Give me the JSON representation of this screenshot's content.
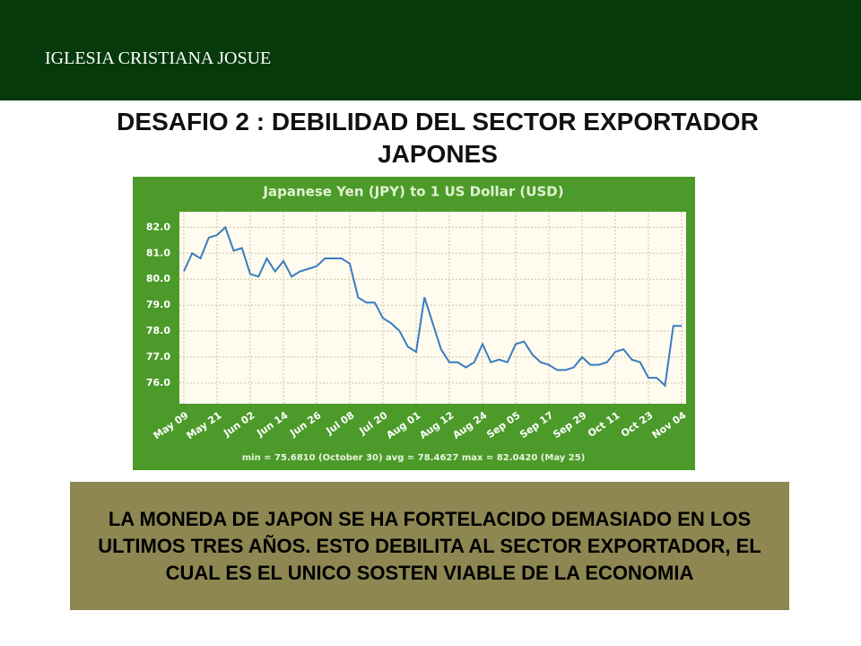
{
  "header": {
    "title": "IGLESIA CRISTIANA JOSUE"
  },
  "title": "DESAFIO 2 : DEBILIDAD DEL SECTOR EXPORTADOR JAPONES",
  "caption": "LA MONEDA DE JAPON SE HA FORTELACIDO DEMASIADO EN LOS ULTIMOS TRES AÑOS. ESTO DEBILITA AL SECTOR EXPORTADOR, EL CUAL ES EL UNICO SOSTEN VIABLE DE LA ECONOMIA",
  "chart_data": {
    "type": "line",
    "title": "Japanese Yen (JPY) to 1 US Dollar (USD)",
    "stats": "min = 75.6810 (October 30)   avg = 78.4627   max = 82.0420 (May 25)",
    "x": [
      "May 09",
      "May 12",
      "May 15",
      "May 18",
      "May 21",
      "May 24",
      "May 27",
      "May 30",
      "Jun 02",
      "Jun 05",
      "Jun 08",
      "Jun 11",
      "Jun 14",
      "Jun 17",
      "Jun 20",
      "Jun 23",
      "Jun 26",
      "Jun 29",
      "Jul 02",
      "Jul 05",
      "Jul 08",
      "Jul 11",
      "Jul 14",
      "Jul 17",
      "Jul 20",
      "Jul 23",
      "Jul 26",
      "Jul 29",
      "Aug 01",
      "Aug 04",
      "Aug 07",
      "Aug 10",
      "Aug 12",
      "Aug 15",
      "Aug 18",
      "Aug 21",
      "Aug 24",
      "Aug 27",
      "Aug 30",
      "Sep 02",
      "Sep 05",
      "Sep 08",
      "Sep 11",
      "Sep 14",
      "Sep 17",
      "Sep 20",
      "Sep 23",
      "Sep 26",
      "Sep 29",
      "Oct 02",
      "Oct 05",
      "Oct 08",
      "Oct 11",
      "Oct 14",
      "Oct 17",
      "Oct 20",
      "Oct 23",
      "Oct 26",
      "Oct 29",
      "Nov 01",
      "Nov 04"
    ],
    "series": [
      {
        "name": "JPY per USD",
        "color": "#3a7cbf",
        "values": [
          80.3,
          81.0,
          80.8,
          81.6,
          81.7,
          82.0,
          81.1,
          81.2,
          80.2,
          80.1,
          80.8,
          80.3,
          80.7,
          80.1,
          80.3,
          80.4,
          80.5,
          80.8,
          80.8,
          80.8,
          80.6,
          79.3,
          79.1,
          79.1,
          78.5,
          78.3,
          78.0,
          77.4,
          77.2,
          79.3,
          78.3,
          77.3,
          76.8,
          76.8,
          76.6,
          76.8,
          77.5,
          76.8,
          76.9,
          76.8,
          77.5,
          77.6,
          77.1,
          76.8,
          76.7,
          76.5,
          76.5,
          76.6,
          77.0,
          76.7,
          76.7,
          76.8,
          77.2,
          77.3,
          76.9,
          76.8,
          76.2,
          76.2,
          75.9,
          78.2,
          78.2
        ]
      }
    ],
    "xticks": [
      "May 09",
      "May 21",
      "Jun 02",
      "Jun 14",
      "Jun 26",
      "Jul 08",
      "Jul 20",
      "Aug 01",
      "Aug 12",
      "Aug 24",
      "Sep 05",
      "Sep 17",
      "Sep 29",
      "Oct 11",
      "Oct 23",
      "Nov 04"
    ],
    "ylim": [
      75.2,
      82.6
    ],
    "yticks": [
      {
        "value": 76,
        "label": "76.0"
      },
      {
        "value": 77,
        "label": "77.0"
      },
      {
        "value": 78,
        "label": "78.0"
      },
      {
        "value": 79,
        "label": "79.0"
      },
      {
        "value": 80,
        "label": "80.0"
      },
      {
        "value": 81,
        "label": "81.0"
      },
      {
        "value": 82,
        "label": "82.0"
      }
    ],
    "grid": true
  }
}
